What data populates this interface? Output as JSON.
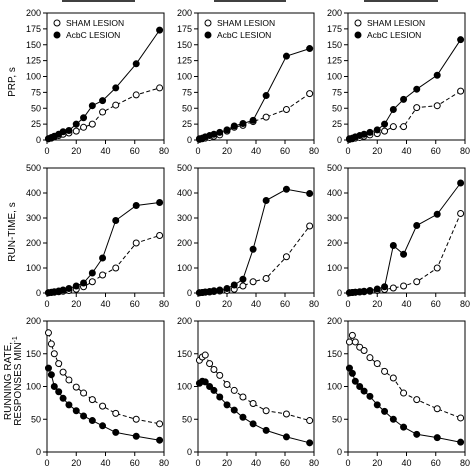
{
  "figure": {
    "ylabels": [
      "PRP, s",
      "RUN-TIME, s",
      "RUNNING RATE,",
      "RESPONSES MIN"
    ],
    "ylabel_sup": "-1"
  },
  "colors": {
    "sham": "#000000",
    "acbc": "#000000",
    "axis": "#000000"
  },
  "chart_data": [
    {
      "type": "line",
      "row": "PRP",
      "column": 1,
      "ylim": [
        0,
        200
      ],
      "xlim": [
        0,
        80
      ],
      "yticks": [
        "0",
        "25",
        "50",
        "75",
        "100",
        "125",
        "150",
        "175",
        "200"
      ],
      "xticks": [
        "0",
        "20",
        "40",
        "60",
        "80"
      ],
      "legend": {
        "placement": "top-left",
        "entries": [
          "SHAM LESION",
          "AcbC LESION"
        ]
      },
      "series": [
        {
          "name": "SHAM LESION",
          "marker": "open-circle",
          "line": "dashed",
          "x": [
            1,
            3,
            5,
            8,
            11,
            15,
            20,
            25,
            31,
            38,
            47,
            61,
            77
          ],
          "y": [
            2,
            3,
            5,
            7,
            9,
            11,
            14,
            20,
            25,
            44,
            55,
            71,
            82
          ]
        },
        {
          "name": "AcbC LESION",
          "marker": "filled-circle",
          "line": "solid",
          "x": [
            1,
            3,
            5,
            8,
            11,
            15,
            20,
            25,
            31,
            38,
            47,
            61,
            77
          ],
          "y": [
            2,
            4,
            6,
            9,
            13,
            15,
            25,
            35,
            54,
            62,
            82,
            120,
            173
          ]
        }
      ]
    },
    {
      "type": "line",
      "row": "PRP",
      "column": 2,
      "ylim": [
        0,
        200
      ],
      "xlim": [
        0,
        80
      ],
      "yticks": [
        "0",
        "25",
        "50",
        "75",
        "100",
        "125",
        "150",
        "175",
        "200"
      ],
      "xticks": [
        "0",
        "20",
        "40",
        "60",
        "80"
      ],
      "legend": {
        "placement": "top-left",
        "entries": [
          "SHAM LESION",
          "AcbC LESION"
        ]
      },
      "series": [
        {
          "name": "SHAM LESION",
          "marker": "open-circle",
          "line": "dashed",
          "x": [
            1,
            3,
            5,
            8,
            11,
            15,
            20,
            25,
            31,
            38,
            47,
            61,
            77
          ],
          "y": [
            1,
            2,
            3,
            4,
            6,
            8,
            14,
            20,
            23,
            29,
            36,
            48,
            73
          ]
        },
        {
          "name": "AcbC LESION",
          "marker": "filled-circle",
          "line": "solid",
          "x": [
            1,
            3,
            5,
            8,
            11,
            15,
            20,
            25,
            31,
            38,
            47,
            61,
            77
          ],
          "y": [
            2,
            3,
            5,
            7,
            9,
            12,
            16,
            22,
            26,
            31,
            70,
            132,
            144
          ]
        }
      ]
    },
    {
      "type": "line",
      "row": "PRP",
      "column": 3,
      "ylim": [
        0,
        200
      ],
      "xlim": [
        0,
        80
      ],
      "yticks": [
        "0",
        "25",
        "50",
        "75",
        "100",
        "125",
        "150",
        "175",
        "200"
      ],
      "xticks": [
        "0",
        "20",
        "40",
        "60",
        "80"
      ],
      "legend": {
        "placement": "top-left",
        "entries": [
          "SHAM LESION",
          "AcbC LESION"
        ]
      },
      "series": [
        {
          "name": "SHAM LESION",
          "marker": "open-circle",
          "line": "dashed",
          "x": [
            1,
            3,
            5,
            8,
            11,
            15,
            20,
            25,
            31,
            38,
            47,
            61,
            77
          ],
          "y": [
            1,
            2,
            3,
            4,
            6,
            8,
            10,
            14,
            21,
            21,
            51,
            54,
            77
          ]
        },
        {
          "name": "AcbC LESION",
          "marker": "filled-circle",
          "line": "solid",
          "x": [
            1,
            3,
            5,
            8,
            11,
            15,
            20,
            25,
            31,
            38,
            47,
            61,
            77
          ],
          "y": [
            2,
            3,
            5,
            7,
            9,
            12,
            16,
            25,
            48,
            64,
            80,
            102,
            158
          ]
        }
      ]
    },
    {
      "type": "line",
      "row": "RUN-TIME",
      "column": 1,
      "ylim": [
        0,
        500
      ],
      "xlim": [
        0,
        80
      ],
      "yticks": [
        "0",
        "100",
        "200",
        "300",
        "400",
        "500"
      ],
      "xticks": [
        "0",
        "20",
        "40",
        "60",
        "80"
      ],
      "series": [
        {
          "name": "SHAM LESION",
          "marker": "open-circle",
          "line": "dashed",
          "x": [
            1,
            3,
            5,
            8,
            11,
            15,
            20,
            25,
            31,
            38,
            47,
            61,
            77
          ],
          "y": [
            1,
            2,
            3,
            5,
            7,
            10,
            15,
            25,
            45,
            72,
            100,
            200,
            230
          ]
        },
        {
          "name": "AcbC LESION",
          "marker": "filled-circle",
          "line": "solid",
          "x": [
            1,
            3,
            5,
            8,
            11,
            15,
            20,
            25,
            31,
            38,
            47,
            61,
            77
          ],
          "y": [
            1,
            3,
            5,
            8,
            12,
            18,
            28,
            40,
            80,
            140,
            290,
            350,
            362
          ]
        }
      ]
    },
    {
      "type": "line",
      "row": "RUN-TIME",
      "column": 2,
      "ylim": [
        0,
        500
      ],
      "xlim": [
        0,
        80
      ],
      "yticks": [
        "0",
        "100",
        "200",
        "300",
        "400",
        "500"
      ],
      "xticks": [
        "0",
        "20",
        "40",
        "60",
        "80"
      ],
      "series": [
        {
          "name": "SHAM LESION",
          "marker": "open-circle",
          "line": "dashed",
          "x": [
            1,
            3,
            5,
            8,
            11,
            15,
            20,
            25,
            31,
            38,
            47,
            61,
            77
          ],
          "y": [
            1,
            2,
            3,
            4,
            6,
            8,
            10,
            15,
            28,
            45,
            58,
            145,
            268
          ]
        },
        {
          "name": "AcbC LESION",
          "marker": "filled-circle",
          "line": "solid",
          "x": [
            1,
            3,
            5,
            8,
            11,
            15,
            20,
            25,
            31,
            38,
            47,
            61,
            77
          ],
          "y": [
            1,
            2,
            4,
            6,
            9,
            12,
            18,
            32,
            55,
            175,
            370,
            415,
            398
          ]
        }
      ]
    },
    {
      "type": "line",
      "row": "RUN-TIME",
      "column": 3,
      "ylim": [
        0,
        500
      ],
      "xlim": [
        0,
        80
      ],
      "yticks": [
        "0",
        "100",
        "200",
        "300",
        "400",
        "500"
      ],
      "xticks": [
        "0",
        "20",
        "40",
        "60",
        "80"
      ],
      "series": [
        {
          "name": "SHAM LESION",
          "marker": "open-circle",
          "line": "dashed",
          "x": [
            1,
            3,
            5,
            8,
            11,
            15,
            20,
            25,
            31,
            38,
            47,
            61,
            77
          ],
          "y": [
            1,
            2,
            3,
            4,
            5,
            7,
            10,
            14,
            20,
            28,
            45,
            100,
            318
          ]
        },
        {
          "name": "AcbC LESION",
          "marker": "filled-circle",
          "line": "solid",
          "x": [
            1,
            3,
            5,
            8,
            11,
            15,
            20,
            25,
            31,
            38,
            47,
            61,
            77
          ],
          "y": [
            1,
            2,
            3,
            5,
            7,
            10,
            16,
            25,
            190,
            155,
            270,
            315,
            440
          ]
        }
      ]
    },
    {
      "type": "line",
      "row": "RUNNING RATE",
      "column": 1,
      "ylim": [
        0,
        200
      ],
      "xlim": [
        0,
        80
      ],
      "yticks": [
        "0",
        "50",
        "100",
        "150",
        "200"
      ],
      "xticks": [
        "0",
        "20",
        "40",
        "60",
        "80"
      ],
      "series": [
        {
          "name": "SHAM LESION",
          "marker": "open-circle",
          "line": "dashed",
          "x": [
            1,
            3,
            5,
            8,
            11,
            15,
            20,
            25,
            31,
            38,
            47,
            61,
            77
          ],
          "y": [
            182,
            165,
            150,
            135,
            122,
            110,
            99,
            90,
            80,
            70,
            59,
            50,
            43
          ]
        },
        {
          "name": "AcbC LESION",
          "marker": "filled-circle",
          "line": "solid",
          "x": [
            1,
            3,
            5,
            8,
            11,
            15,
            20,
            25,
            31,
            38,
            47,
            61,
            77
          ],
          "y": [
            128,
            118,
            100,
            92,
            82,
            72,
            63,
            55,
            48,
            40,
            30,
            24,
            18
          ]
        }
      ]
    },
    {
      "type": "line",
      "row": "RUNNING RATE",
      "column": 2,
      "ylim": [
        0,
        200
      ],
      "xlim": [
        0,
        80
      ],
      "yticks": [
        "0",
        "50",
        "100",
        "150",
        "200"
      ],
      "xticks": [
        "0",
        "20",
        "40",
        "60",
        "80"
      ],
      "series": [
        {
          "name": "SHAM LESION",
          "marker": "open-circle",
          "line": "dashed",
          "x": [
            1,
            3,
            5,
            8,
            11,
            15,
            20,
            25,
            31,
            38,
            47,
            61,
            77
          ],
          "y": [
            140,
            145,
            148,
            135,
            126,
            117,
            103,
            94,
            84,
            74,
            63,
            58,
            48
          ]
        },
        {
          "name": "AcbC LESION",
          "marker": "filled-circle",
          "line": "solid",
          "x": [
            1,
            3,
            5,
            8,
            11,
            15,
            20,
            25,
            31,
            38,
            47,
            61,
            77
          ],
          "y": [
            105,
            108,
            107,
            100,
            94,
            84,
            72,
            64,
            53,
            43,
            33,
            23,
            14
          ]
        }
      ]
    },
    {
      "type": "line",
      "row": "RUNNING RATE",
      "column": 3,
      "ylim": [
        0,
        200
      ],
      "xlim": [
        0,
        80
      ],
      "yticks": [
        "0",
        "50",
        "100",
        "150",
        "200"
      ],
      "xticks": [
        "0",
        "20",
        "40",
        "60",
        "80"
      ],
      "series": [
        {
          "name": "SHAM LESION",
          "marker": "open-circle",
          "line": "dashed",
          "x": [
            1,
            3,
            5,
            8,
            11,
            15,
            20,
            25,
            31,
            38,
            47,
            61,
            77
          ],
          "y": [
            168,
            178,
            168,
            160,
            155,
            144,
            135,
            123,
            113,
            90,
            80,
            66,
            52
          ]
        },
        {
          "name": "AcbC LESION",
          "marker": "filled-circle",
          "line": "solid",
          "x": [
            1,
            3,
            5,
            8,
            11,
            15,
            20,
            25,
            31,
            38,
            47,
            61,
            77
          ],
          "y": [
            128,
            120,
            108,
            100,
            93,
            85,
            72,
            62,
            50,
            38,
            27,
            22,
            15
          ]
        }
      ]
    }
  ]
}
